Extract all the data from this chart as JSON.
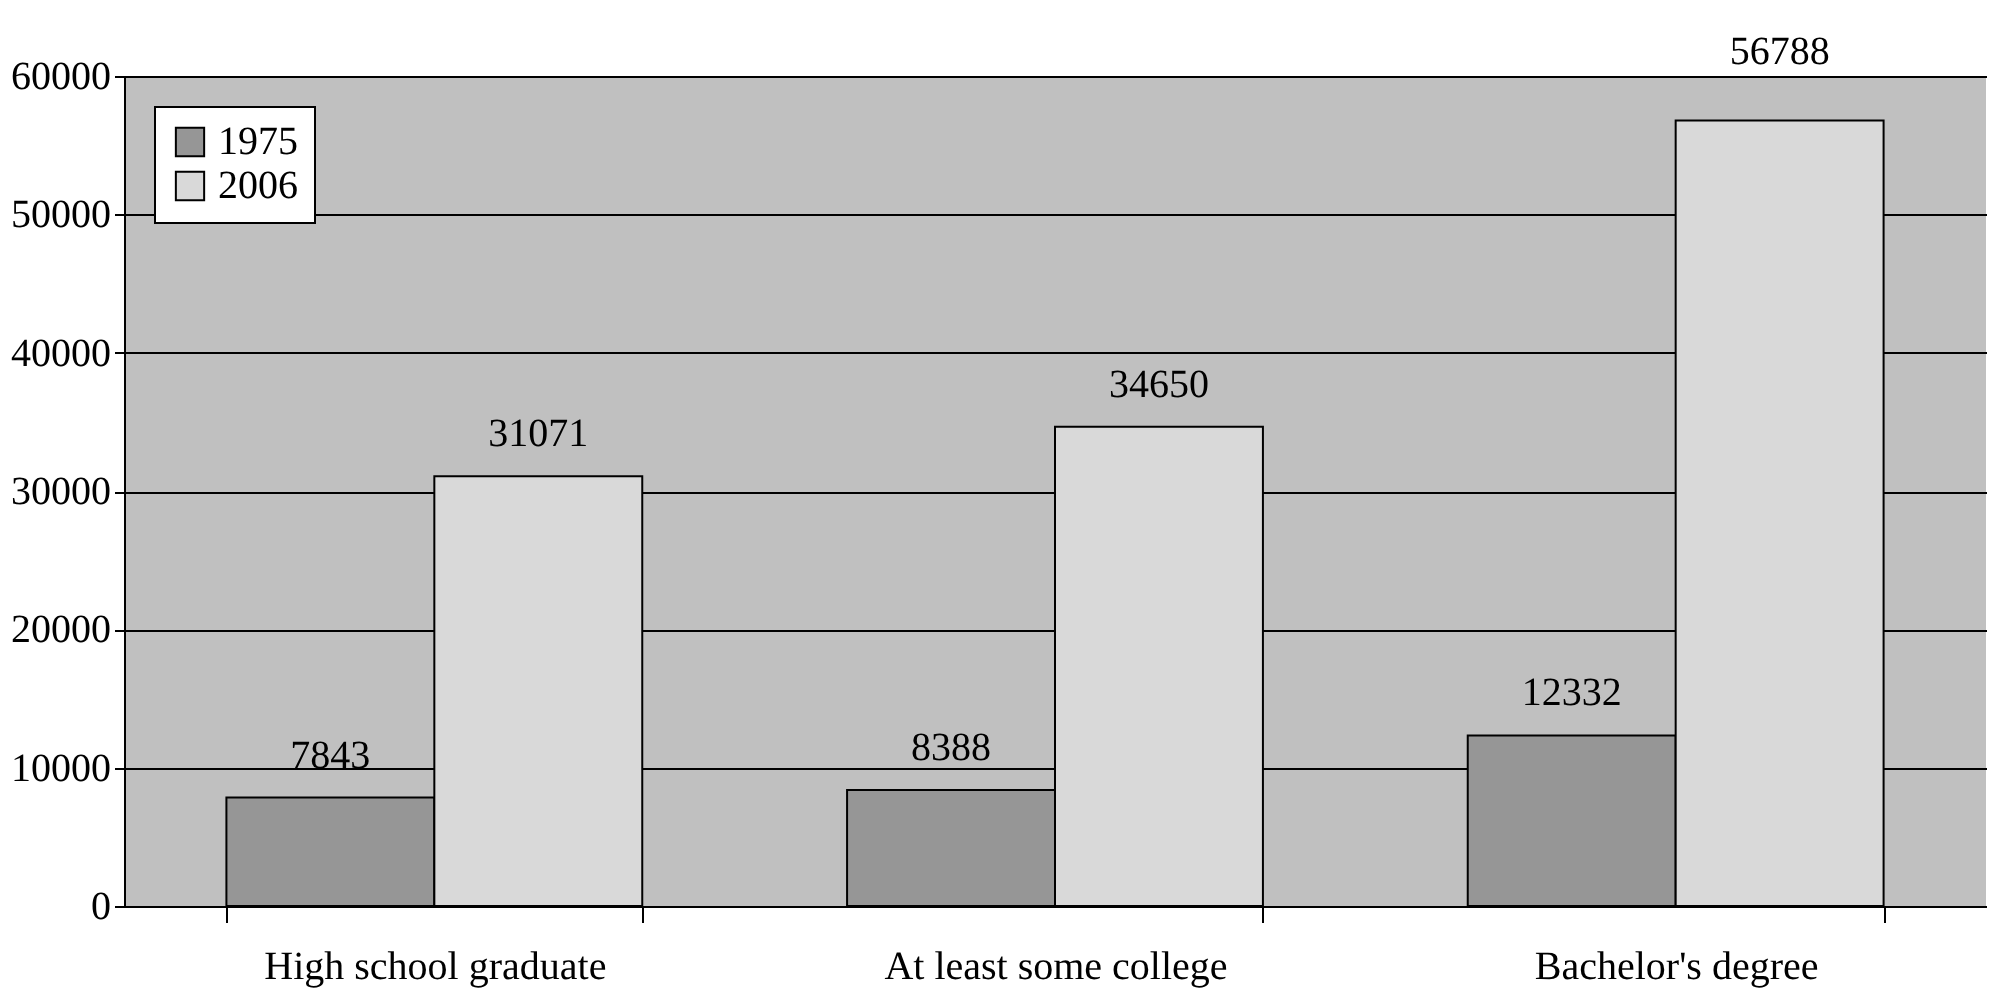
{
  "chart_data": {
    "type": "bar",
    "categories": [
      "High school graduate",
      "At least some college",
      "Bachelor's degree"
    ],
    "series": [
      {
        "name": "1975",
        "color": "#969696",
        "values": [
          7843,
          8388,
          12332
        ]
      },
      {
        "name": "2006",
        "color": "#d9d9d9",
        "values": [
          31071,
          34650,
          56788
        ]
      }
    ],
    "ylim": [
      0,
      60000
    ],
    "yticks": [
      0,
      10000,
      20000,
      30000,
      40000,
      50000,
      60000
    ],
    "grid": "y",
    "legend": "top left",
    "data_labels": true
  }
}
